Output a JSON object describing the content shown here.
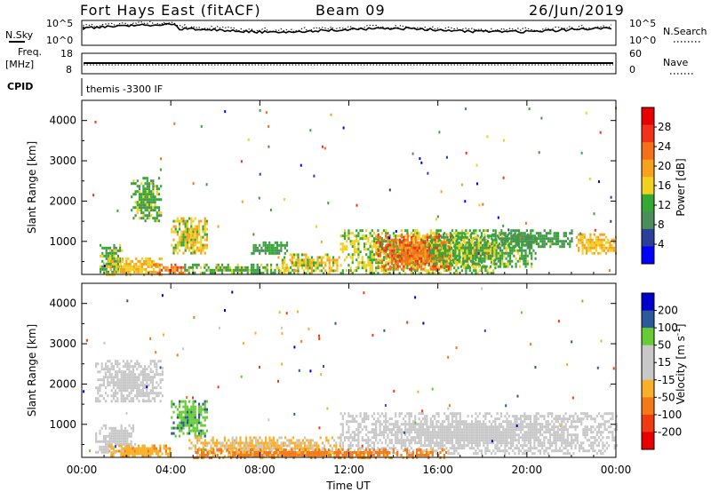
{
  "header": {
    "title": "Fort Hays East (fitACF)",
    "beam": "Beam 09",
    "date": "26/Jun/2019"
  },
  "strip": {
    "nsky_label": "N.Sky",
    "nsearch_label": "N.Search",
    "noise_ticks": [
      "10^5",
      "10^0"
    ],
    "freq_label": "Freq.",
    "freq_unit": "[MHz]",
    "freq_ticks": [
      "18",
      "8"
    ],
    "nave_label": "Nave",
    "nave_ticks": [
      "60",
      "0"
    ],
    "cpid_label": "CPID",
    "cpid_text": "themis -3300 IF"
  },
  "colors": {
    "power": [
      "#0000ff",
      "#2a3f9a",
      "#4a8e5a",
      "#33a833",
      "#f2d020",
      "#f6a21a",
      "#f4701a",
      "#f23218",
      "#e80000"
    ],
    "velocity": [
      "#e80000",
      "#f23a10",
      "#f47a18",
      "#f8b028",
      "#c8c8c8",
      "#c8c8c8",
      "#66cc33",
      "#2a5a9a",
      "#0000cc"
    ]
  },
  "chart_data": [
    {
      "type": "heatmap",
      "name": "power",
      "xlabel": "Time UT",
      "ylabel": "Slant Range [km]",
      "x_ticks": [
        "00:00",
        "04:00",
        "08:00",
        "12:00",
        "16:00",
        "20:00",
        "00:00"
      ],
      "x_range_hours": [
        0,
        24
      ],
      "y_ticks": [
        1000,
        2000,
        3000,
        4000
      ],
      "y_range_km": [
        180,
        4500
      ],
      "colorbar_label": "Power [dB]",
      "colorbar_ticks": [
        4,
        8,
        12,
        16,
        20,
        24,
        28
      ],
      "colorbar_range": [
        0,
        32
      ],
      "regions": [
        {
          "t0": 0.8,
          "t1": 1.8,
          "r0": 200,
          "r1": 1000,
          "v": 14
        },
        {
          "t0": 1.0,
          "t1": 3.6,
          "r0": 200,
          "r1": 600,
          "v": 20
        },
        {
          "t0": 2.2,
          "t1": 3.6,
          "r0": 1500,
          "r1": 2600,
          "v": 14
        },
        {
          "t0": 3.2,
          "t1": 4.6,
          "r0": 220,
          "r1": 450,
          "v": 26
        },
        {
          "t0": 4.0,
          "t1": 5.6,
          "r0": 700,
          "r1": 1600,
          "v": 18
        },
        {
          "t0": 4.6,
          "t1": 9.6,
          "r0": 200,
          "r1": 450,
          "v": 14
        },
        {
          "t0": 7.6,
          "t1": 9.2,
          "r0": 700,
          "r1": 1000,
          "v": 12
        },
        {
          "t0": 8.8,
          "t1": 11.6,
          "r0": 200,
          "r1": 700,
          "v": 18
        },
        {
          "t0": 11.6,
          "t1": 18.6,
          "r0": 200,
          "r1": 1300,
          "v": 16
        },
        {
          "t0": 13.2,
          "t1": 16.6,
          "r0": 300,
          "r1": 1200,
          "v": 26
        },
        {
          "t0": 15.6,
          "t1": 20.4,
          "r0": 400,
          "r1": 1200,
          "v": 14
        },
        {
          "t0": 18.2,
          "t1": 22.0,
          "r0": 900,
          "r1": 1300,
          "v": 12
        },
        {
          "t0": 22.2,
          "t1": 24.0,
          "r0": 700,
          "r1": 1200,
          "v": 20
        }
      ]
    },
    {
      "type": "heatmap",
      "name": "velocity",
      "xlabel": "Time UT",
      "ylabel": "Slant Range [km]",
      "x_ticks": [
        "00:00",
        "04:00",
        "08:00",
        "12:00",
        "16:00",
        "20:00",
        "00:00"
      ],
      "x_range_hours": [
        0,
        24
      ],
      "y_ticks": [
        1000,
        2000,
        3000,
        4000
      ],
      "y_range_km": [
        180,
        4500
      ],
      "colorbar_label": "Velocity [m s^-1]",
      "colorbar_ticks": [
        200,
        100,
        50,
        15,
        -15,
        -50,
        -100,
        -200
      ],
      "regions": [
        {
          "t0": 0.6,
          "t1": 2.4,
          "r0": 300,
          "r1": 1000,
          "v": 0
        },
        {
          "t0": 0.6,
          "t1": 3.6,
          "r0": 1600,
          "r1": 2600,
          "v": 0
        },
        {
          "t0": 1.2,
          "t1": 4.0,
          "r0": 200,
          "r1": 500,
          "v": -40
        },
        {
          "t0": 4.0,
          "t1": 5.6,
          "r0": 700,
          "r1": 1600,
          "v": 40
        },
        {
          "t0": 4.8,
          "t1": 11.6,
          "r0": 200,
          "r1": 700,
          "v": -20
        },
        {
          "t0": 11.6,
          "t1": 24.0,
          "r0": 300,
          "r1": 1300,
          "v": 0
        },
        {
          "t0": 5.0,
          "t1": 16.4,
          "r0": 200,
          "r1": 400,
          "v": -60
        }
      ]
    }
  ]
}
